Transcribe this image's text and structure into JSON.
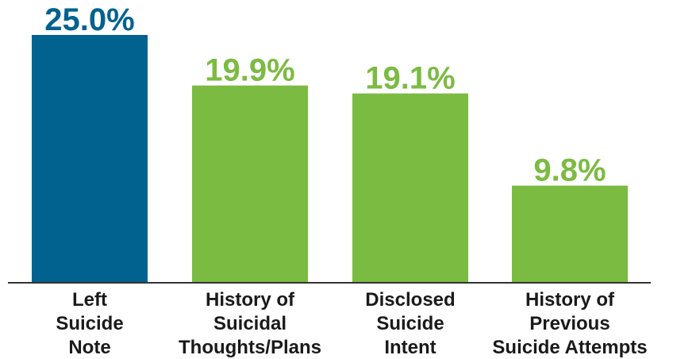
{
  "chart_data": {
    "type": "bar",
    "categories": [
      [
        "Left",
        "Suicide",
        "Note"
      ],
      [
        "History of",
        "Suicidal",
        "Thoughts/Plans"
      ],
      [
        "Disclosed",
        "Suicide",
        "Intent"
      ],
      [
        "History of",
        "Previous",
        "Suicide Attempts"
      ]
    ],
    "values": [
      25.0,
      19.9,
      19.1,
      9.8
    ],
    "value_labels": [
      "25.0%",
      "19.9%",
      "19.1%",
      "9.8%"
    ],
    "bar_colors": [
      "#02628f",
      "#7bbb42",
      "#7bbb42",
      "#7bbb42"
    ],
    "label_colors": [
      "#02628f",
      "#7bbb42",
      "#7bbb42",
      "#7bbb42"
    ],
    "ylim": [
      0,
      25
    ],
    "grid": false,
    "legend": "none",
    "axis_color": "#333333"
  }
}
